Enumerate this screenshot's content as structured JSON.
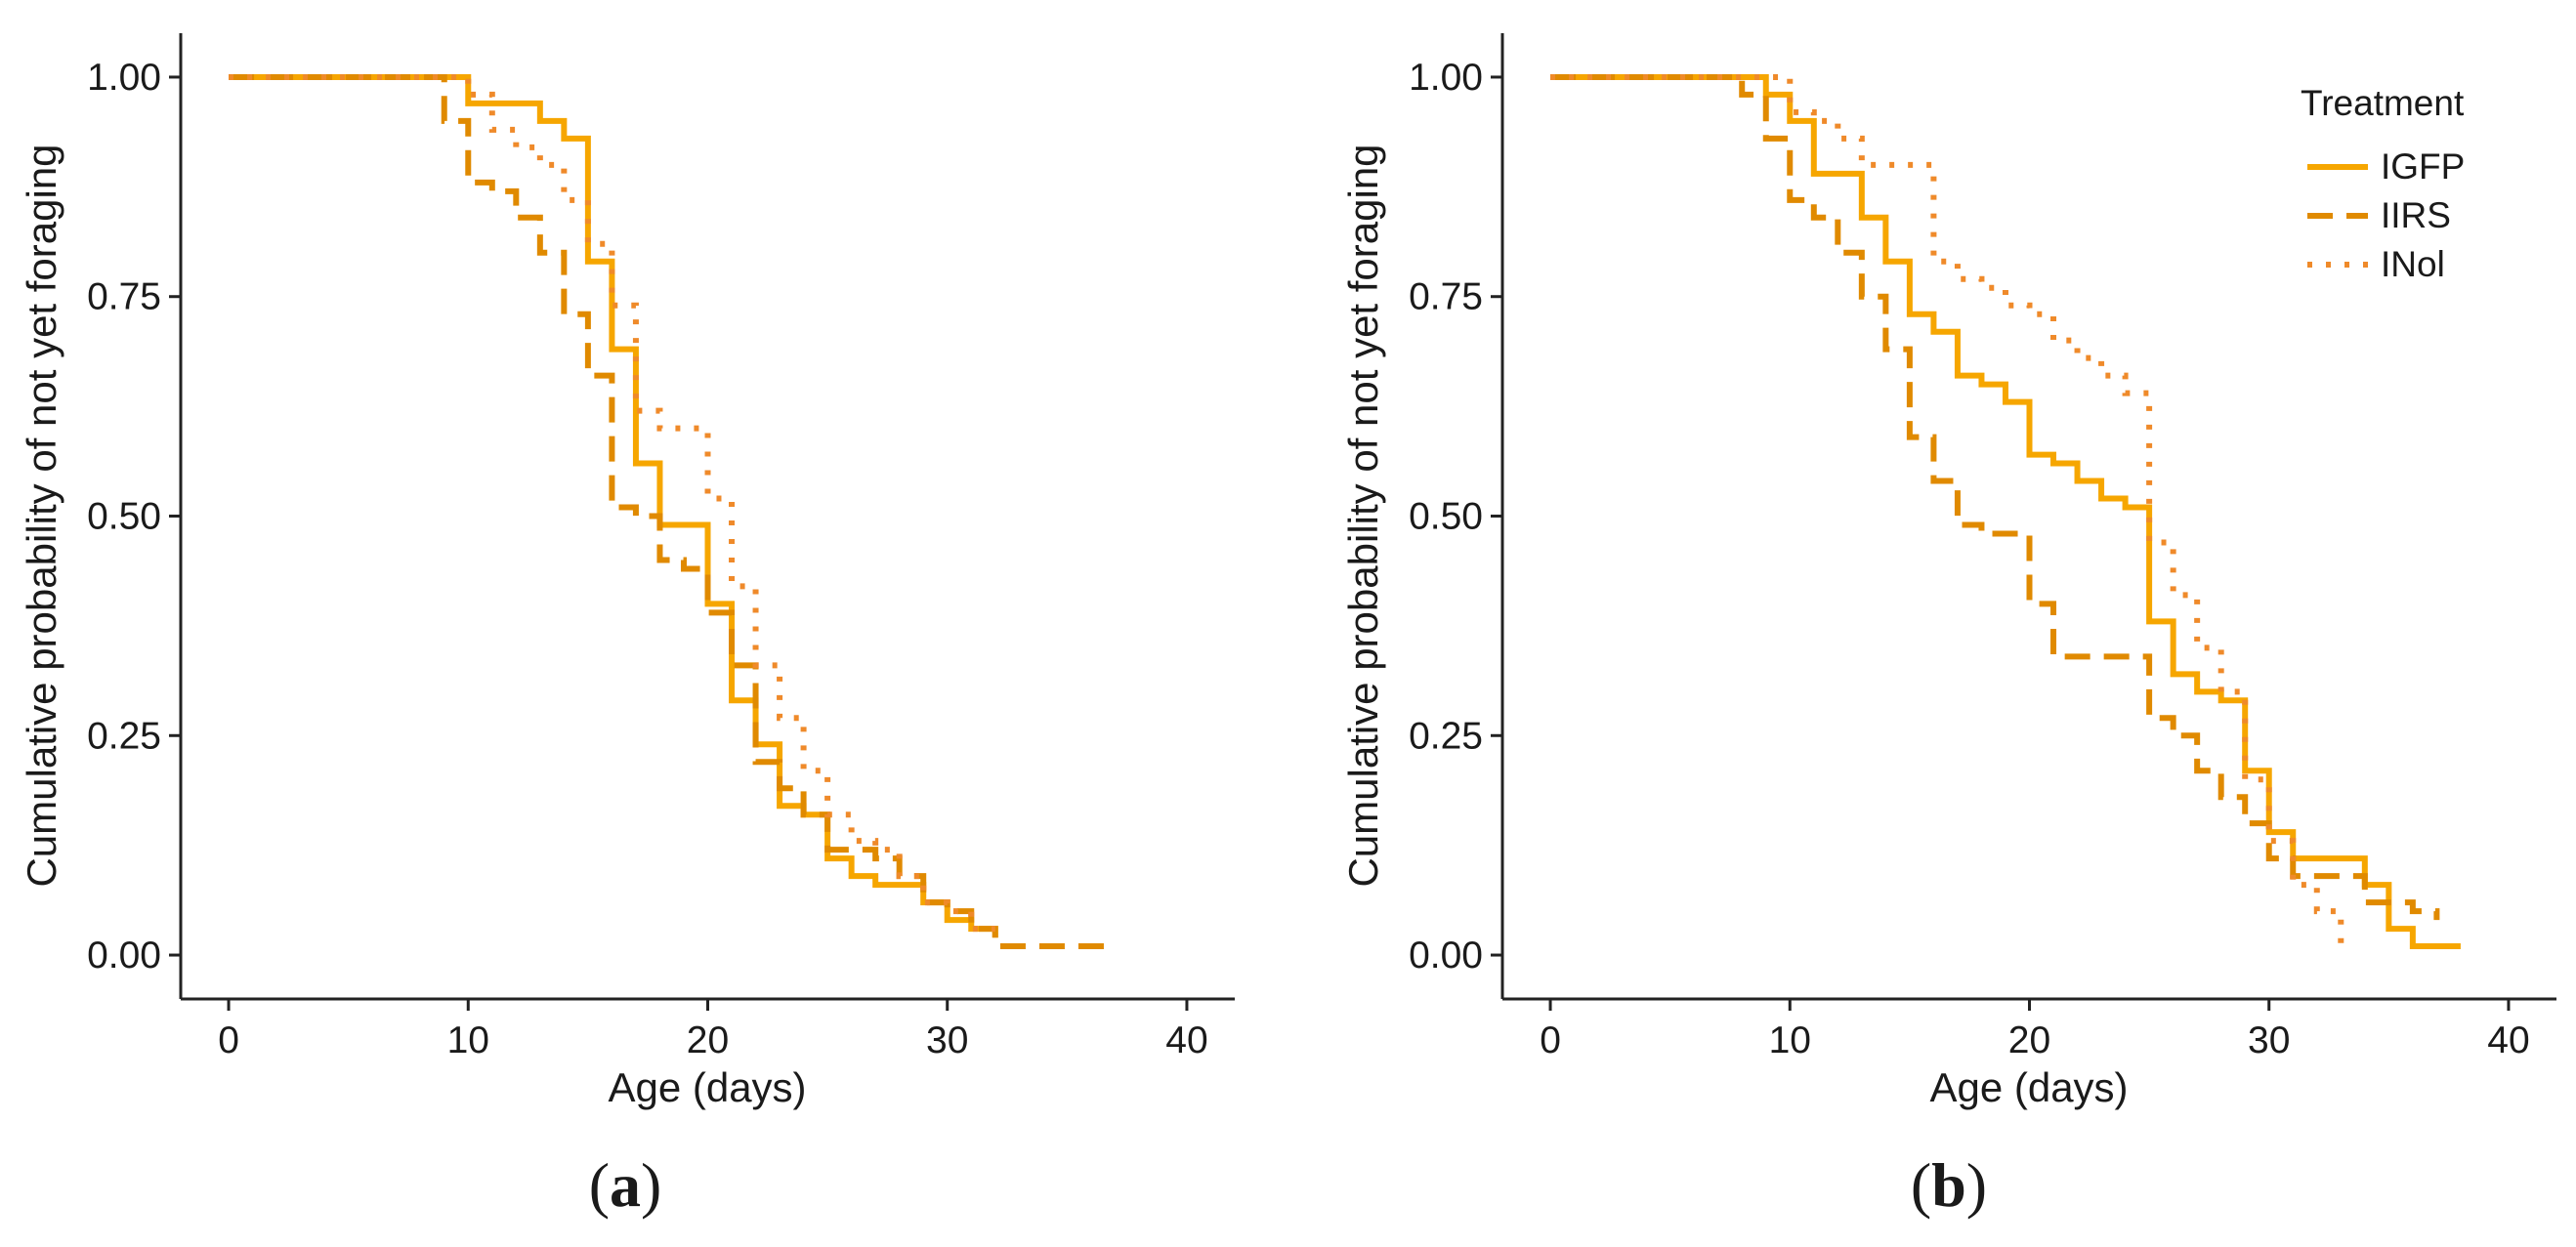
{
  "legend": {
    "title": "Treatment",
    "entries": [
      {
        "name": "IGFP",
        "style": "solid"
      },
      {
        "name": "IIRS",
        "style": "dashed"
      },
      {
        "name": "INol",
        "style": "dotted"
      }
    ]
  },
  "colors": {
    "IGFP": "#f6a600",
    "IIRS": "#e08a00",
    "INol": "#ef8a2a",
    "axis": "#222222"
  },
  "chart_data": [
    {
      "id": "a",
      "panel_label": "(a)",
      "panel_open": "(",
      "panel_letter": "a",
      "panel_close": ")",
      "type": "line",
      "step": true,
      "title": "",
      "xlabel": "Age (days)",
      "ylabel": "Cumulative probability of not yet foraging",
      "xlim": [
        -2,
        42
      ],
      "ylim": [
        -0.05,
        1.05
      ],
      "xticks": [
        0,
        10,
        20,
        30,
        40
      ],
      "yticks": [
        0.0,
        0.25,
        0.5,
        0.75,
        1.0
      ],
      "xtick_labels": [
        "0",
        "10",
        "20",
        "30",
        "40"
      ],
      "ytick_labels": [
        "0.00",
        "0.25",
        "0.50",
        "0.75",
        "1.00"
      ],
      "grid": false,
      "legend_shown": false,
      "series": [
        {
          "name": "IGFP",
          "style": "solid",
          "x": [
            0,
            10,
            13,
            14,
            15,
            16,
            17,
            18,
            20,
            21,
            22,
            23,
            24,
            25,
            26,
            27,
            29,
            30,
            31,
            32
          ],
          "y": [
            1.0,
            0.97,
            0.95,
            0.93,
            0.79,
            0.69,
            0.56,
            0.49,
            0.4,
            0.29,
            0.24,
            0.17,
            0.16,
            0.11,
            0.09,
            0.08,
            0.06,
            0.04,
            0.03,
            0.02
          ]
        },
        {
          "name": "IIRS",
          "style": "dashed",
          "x": [
            0,
            9,
            10,
            11,
            12,
            13,
            14,
            15,
            16,
            17,
            18,
            19,
            20,
            21,
            22,
            23,
            24,
            25,
            27,
            28,
            29,
            30,
            31,
            32,
            37
          ],
          "y": [
            1.0,
            0.95,
            0.88,
            0.87,
            0.84,
            0.8,
            0.73,
            0.66,
            0.51,
            0.5,
            0.45,
            0.44,
            0.39,
            0.33,
            0.22,
            0.19,
            0.16,
            0.12,
            0.11,
            0.09,
            0.06,
            0.05,
            0.03,
            0.01,
            0.01
          ]
        },
        {
          "name": "INol",
          "style": "dotted",
          "x": [
            0,
            10,
            11,
            12,
            13,
            14,
            15,
            16,
            17,
            18,
            20,
            21,
            22,
            23,
            24,
            25,
            26,
            27,
            28,
            29,
            30,
            31,
            32
          ],
          "y": [
            1.0,
            0.98,
            0.94,
            0.92,
            0.9,
            0.86,
            0.81,
            0.74,
            0.62,
            0.6,
            0.52,
            0.42,
            0.33,
            0.27,
            0.21,
            0.16,
            0.13,
            0.12,
            0.09,
            0.06,
            0.05,
            0.03,
            0.03
          ]
        }
      ]
    },
    {
      "id": "b",
      "panel_label": "(b)",
      "panel_open": "(",
      "panel_letter": "b",
      "panel_close": ")",
      "type": "line",
      "step": true,
      "title": "",
      "xlabel": "Age (days)",
      "ylabel": "Cumulative probability of not yet foraging",
      "xlim": [
        -2,
        42
      ],
      "ylim": [
        -0.05,
        1.05
      ],
      "xticks": [
        0,
        10,
        20,
        30,
        40
      ],
      "yticks": [
        0.0,
        0.25,
        0.5,
        0.75,
        1.0
      ],
      "xtick_labels": [
        "0",
        "10",
        "20",
        "30",
        "40"
      ],
      "ytick_labels": [
        "0.00",
        "0.25",
        "0.50",
        "0.75",
        "1.00"
      ],
      "grid": false,
      "legend_shown": true,
      "legend_position": "top-right",
      "series": [
        {
          "name": "IGFP",
          "style": "solid",
          "x": [
            0,
            9,
            10,
            11,
            13,
            14,
            15,
            16,
            17,
            18,
            19,
            20,
            21,
            22,
            23,
            24,
            25,
            26,
            27,
            28,
            29,
            30,
            31,
            34,
            35,
            36,
            38
          ],
          "y": [
            1.0,
            0.98,
            0.95,
            0.89,
            0.84,
            0.79,
            0.73,
            0.71,
            0.66,
            0.65,
            0.63,
            0.57,
            0.56,
            0.54,
            0.52,
            0.51,
            0.38,
            0.32,
            0.3,
            0.29,
            0.21,
            0.14,
            0.11,
            0.08,
            0.03,
            0.01,
            0.01
          ]
        },
        {
          "name": "IIRS",
          "style": "dashed",
          "x": [
            0,
            8,
            9,
            10,
            11,
            12,
            13,
            14,
            15,
            16,
            17,
            18,
            20,
            21,
            25,
            26,
            27,
            28,
            29,
            30,
            31,
            34,
            36,
            37
          ],
          "y": [
            1.0,
            0.98,
            0.93,
            0.86,
            0.84,
            0.8,
            0.75,
            0.69,
            0.59,
            0.54,
            0.49,
            0.48,
            0.4,
            0.34,
            0.27,
            0.25,
            0.21,
            0.18,
            0.15,
            0.11,
            0.09,
            0.06,
            0.05,
            0.04
          ]
        },
        {
          "name": "INol",
          "style": "dotted",
          "x": [
            0,
            10,
            11,
            12,
            13,
            14,
            15,
            16,
            17,
            18,
            19,
            20,
            21,
            22,
            23,
            24,
            25,
            26,
            27,
            28,
            29,
            30,
            31,
            32,
            33
          ],
          "y": [
            1.0,
            0.96,
            0.95,
            0.93,
            0.9,
            0.9,
            0.9,
            0.79,
            0.77,
            0.76,
            0.74,
            0.73,
            0.7,
            0.68,
            0.66,
            0.64,
            0.47,
            0.41,
            0.35,
            0.3,
            0.2,
            0.13,
            0.08,
            0.05,
            0.01
          ]
        }
      ]
    }
  ]
}
